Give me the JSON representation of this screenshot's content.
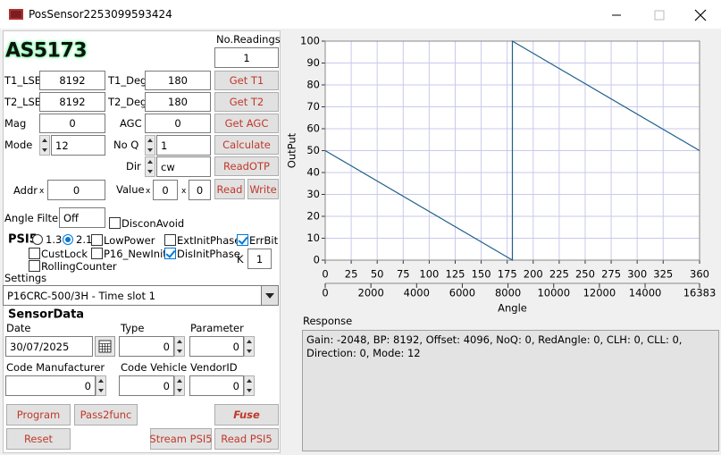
{
  "window": {
    "title": "PosSensor2253099593424"
  },
  "header": {
    "logo": "AS5173",
    "readings_label": "No.Readings",
    "readings_value": "1"
  },
  "sensor": {
    "t1_lsb": {
      "label": "T1_LSB",
      "value": "8192"
    },
    "t1_deg": {
      "label": "T1_Deg",
      "value": "180"
    },
    "t2_lsb": {
      "label": "T2_LSB",
      "value": "8192"
    },
    "t2_deg": {
      "label": "T2_Deg",
      "value": "180"
    },
    "mag": {
      "label": "Mag",
      "value": "0"
    },
    "agc": {
      "label": "AGC",
      "value": "0"
    },
    "mode": {
      "label": "Mode",
      "value": "12"
    },
    "no_q": {
      "label": "No Q",
      "value": "1"
    },
    "dir": {
      "label": "Dir",
      "value": "cw"
    },
    "addr": {
      "label": "Addr",
      "prefix": "x",
      "value": "0"
    },
    "value": {
      "label": "Value",
      "prefix": "x",
      "values": [
        "0",
        "0"
      ]
    }
  },
  "buttons": {
    "get_t1": "Get T1",
    "get_t2": "Get T2",
    "get_agc": "Get AGC",
    "calculate": "Calculate",
    "read_otp": "ReadOTP",
    "read": "Read",
    "write": "Write"
  },
  "angle_filter": {
    "label": "Angle Filter",
    "value": "Off"
  },
  "discon_avoid": {
    "label": "DisconAvoid",
    "checked": false
  },
  "psi5": {
    "label": "PSI5",
    "versions": [
      {
        "label": "1.3",
        "selected": false
      },
      {
        "label": "2.1",
        "selected": true
      }
    ],
    "options": [
      {
        "label": "LowPower",
        "checked": false
      },
      {
        "label": "ExtInitPhase",
        "checked": false
      },
      {
        "label": "ErrBit",
        "checked": true
      },
      {
        "label": "CustLock",
        "checked": false
      },
      {
        "label": "P16_NewInit",
        "checked": false
      },
      {
        "label": "DisInitPhase",
        "checked": true
      },
      {
        "label": "RollingCounter",
        "checked": false
      }
    ],
    "k_label": "K",
    "k_value": "1"
  },
  "settings": {
    "label": "Settings",
    "selected": "P16CRC-500/3H - Time slot 1"
  },
  "sensor_data": {
    "title": "SensorData",
    "date": {
      "label": "Date",
      "value": "30/07/2025"
    },
    "type": {
      "label": "Type",
      "value": "0"
    },
    "parameter": {
      "label": "Parameter",
      "value": "0"
    },
    "code_manufacturer": {
      "label": "Code Manufacturer",
      "value": "0"
    },
    "code_vehicle": {
      "label": "Code Vehicle",
      "value": "0"
    },
    "vendor_id": {
      "label": "VendorID",
      "value": "0"
    }
  },
  "actions": {
    "program": "Program",
    "pass2func": "Pass2func",
    "fuse": "Fuse",
    "reset": "Reset",
    "stream_psi5": "Stream PSI5",
    "read_psi5": "Read PSI5"
  },
  "chart": {
    "type": "line",
    "xlabel": "Angle",
    "ylabel": "OutPut",
    "x": [
      0,
      180,
      180,
      360
    ],
    "series": [
      {
        "color": "#1f5f8b",
        "values": [
          50,
          0,
          100,
          50
        ]
      }
    ],
    "xlim": [
      0,
      360
    ],
    "xticks": [
      0,
      25,
      50,
      75,
      100,
      125,
      150,
      175,
      200,
      225,
      250,
      275,
      300,
      325,
      360
    ],
    "x2lim": [
      0,
      16383
    ],
    "x2ticks": [
      0,
      2000,
      4000,
      6000,
      8000,
      10000,
      12000,
      14000,
      16383
    ],
    "ylim": [
      0,
      100
    ],
    "yticks": [
      0,
      10,
      20,
      30,
      40,
      50,
      60,
      70,
      80,
      90,
      100
    ],
    "grid": true
  },
  "response": {
    "label": "Response",
    "text": "Gain: -2048, BP: 8192, Offset: 4096, NoQ: 0, RedAngle: 0, CLH: 0, CLL: 0, Direction: 0, Mode: 12"
  }
}
